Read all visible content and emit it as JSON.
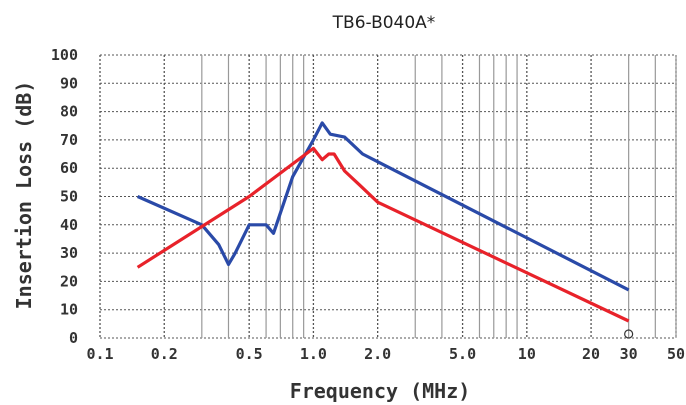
{
  "chart_data": {
    "type": "line",
    "title": "TB6-B040A*",
    "xlabel": "Frequency (MHz)",
    "ylabel": "Insertion Loss (dB)",
    "xscale": "log",
    "xlim": [
      0.1,
      50
    ],
    "ylim": [
      0,
      100
    ],
    "grid": true,
    "legend": "none",
    "yticks": [
      0,
      10,
      20,
      30,
      40,
      50,
      60,
      70,
      80,
      90,
      100
    ],
    "xticks": [
      {
        "value": 0.1,
        "label": "0.1"
      },
      {
        "value": 0.2,
        "label": "0.2"
      },
      {
        "value": 0.5,
        "label": "0.5"
      },
      {
        "value": 1.0,
        "label": "1.0"
      },
      {
        "value": 2.0,
        "label": "2.0"
      },
      {
        "value": 5.0,
        "label": "5.0"
      },
      {
        "value": 10,
        "label": "10"
      },
      {
        "value": 20,
        "label": "20"
      },
      {
        "value": 30,
        "label": "30"
      },
      {
        "value": 50,
        "label": "50"
      }
    ],
    "series": [
      {
        "color": "#2a4aa8",
        "x": [
          0.15,
          0.3,
          0.36,
          0.4,
          0.43,
          0.5,
          0.6,
          0.65,
          0.8,
          1.0,
          1.1,
          1.2,
          1.4,
          1.7,
          30
        ],
        "y": [
          50,
          40,
          33,
          26,
          30,
          40,
          40,
          37,
          57,
          70,
          76,
          72,
          71,
          65,
          17
        ]
      },
      {
        "color": "#e8222a",
        "x": [
          0.15,
          0.5,
          1.0,
          1.1,
          1.18,
          1.25,
          1.4,
          1.65,
          2.0,
          30
        ],
        "y": [
          25,
          50,
          67,
          63,
          65,
          65,
          59,
          54,
          48,
          6
        ]
      }
    ]
  }
}
